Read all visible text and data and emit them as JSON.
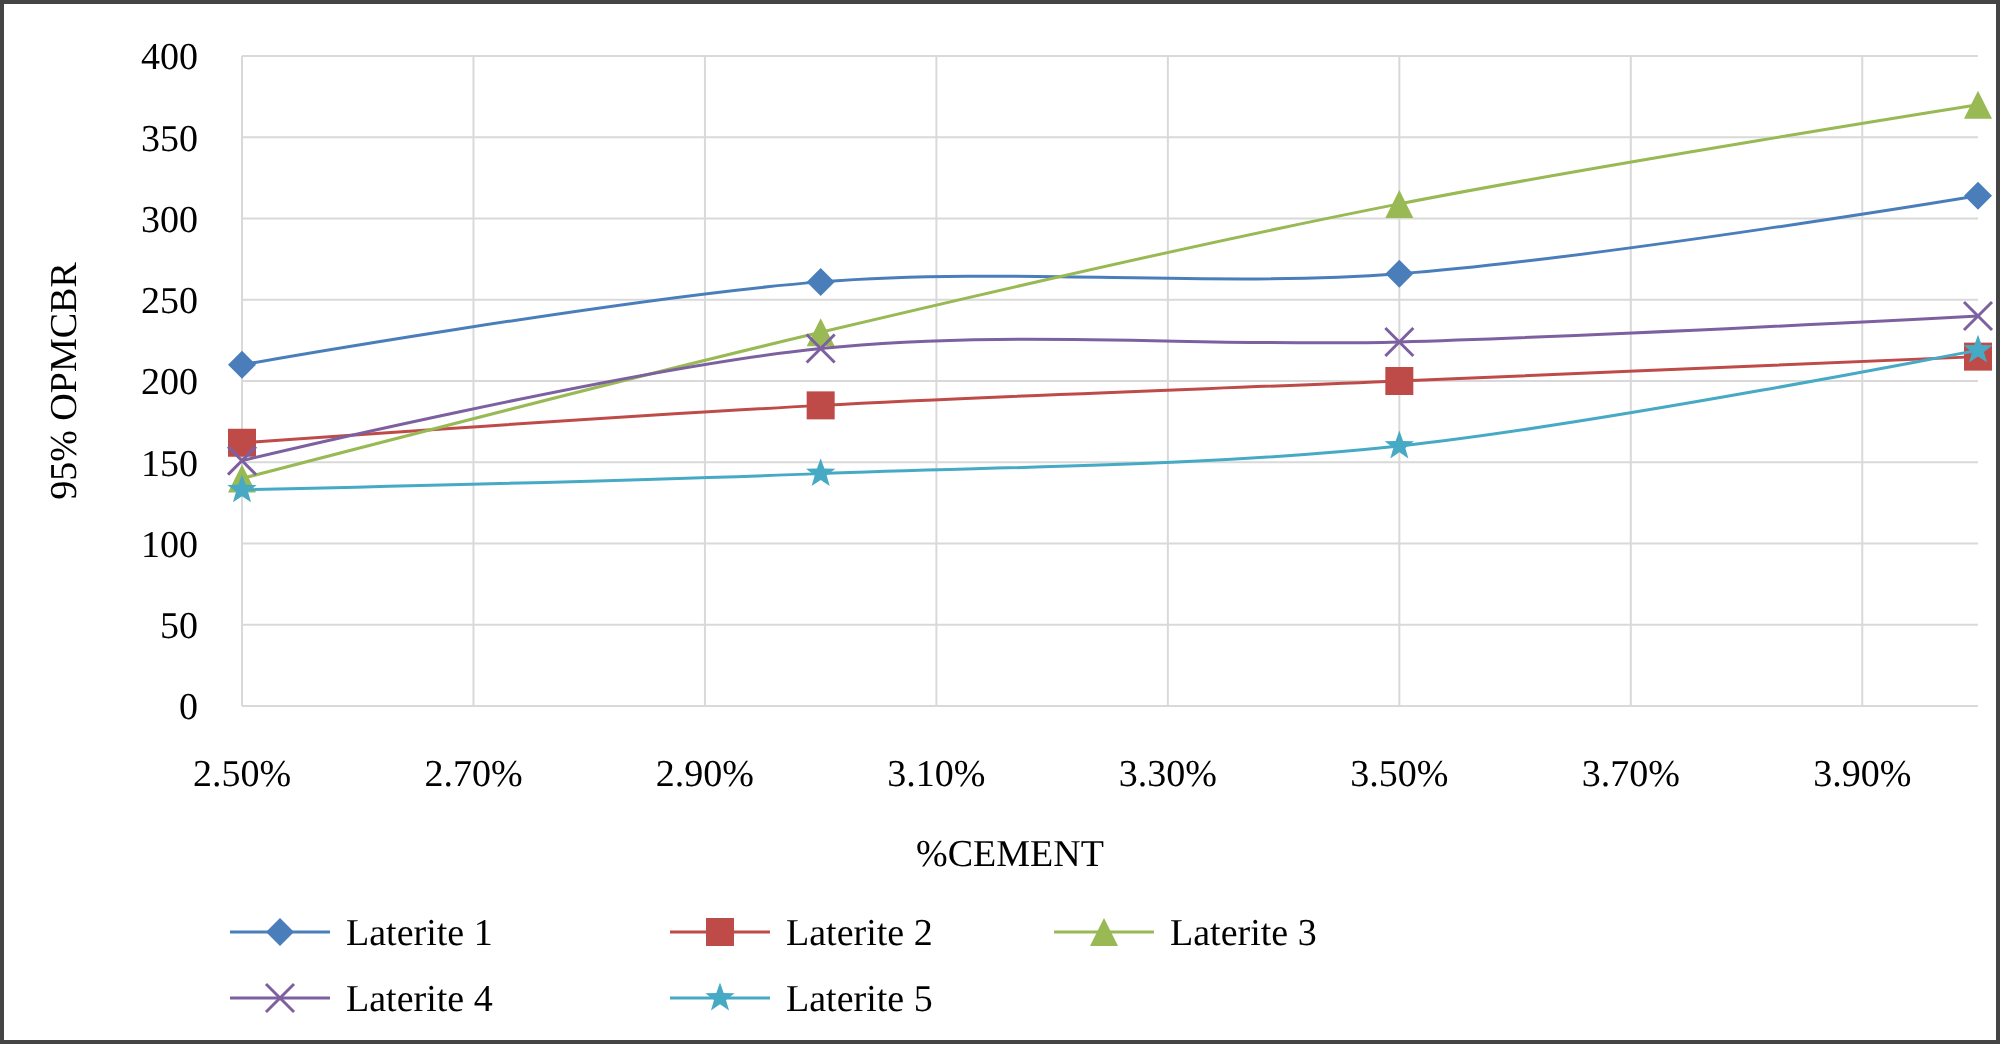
{
  "chart_data": {
    "type": "line",
    "xlabel": "%CEMENT",
    "ylabel": "95% OPMCBR",
    "x": [
      2.5,
      3.0,
      3.5,
      4.0
    ],
    "series": [
      {
        "name": "Laterite 1",
        "color": "#4a7ebb",
        "marker": "diamond",
        "values": [
          210,
          261,
          266,
          314
        ]
      },
      {
        "name": "Laterite 2",
        "color": "#be4b48",
        "marker": "square",
        "values": [
          162,
          185,
          200,
          215
        ]
      },
      {
        "name": "Laterite 3",
        "color": "#98b954",
        "marker": "triangle",
        "values": [
          140,
          230,
          309,
          370
        ]
      },
      {
        "name": "Laterite 4",
        "color": "#7d60a0",
        "marker": "cross",
        "values": [
          151,
          220,
          224,
          240
        ]
      },
      {
        "name": "Laterite 5",
        "color": "#46aac5",
        "marker": "star",
        "values": [
          133,
          143,
          160,
          219
        ]
      }
    ],
    "xlim": [
      2.5,
      4.0
    ],
    "xticks": [
      {
        "value": 2.5,
        "label": "2.50%"
      },
      {
        "value": 2.7,
        "label": "2.70%"
      },
      {
        "value": 2.9,
        "label": "2.90%"
      },
      {
        "value": 3.1,
        "label": "3.10%"
      },
      {
        "value": 3.3,
        "label": "3.30%"
      },
      {
        "value": 3.5,
        "label": "3.50%"
      },
      {
        "value": 3.7,
        "label": "3.70%"
      },
      {
        "value": 3.9,
        "label": "3.90%"
      }
    ],
    "ylim": [
      0,
      400
    ],
    "yticks": [
      0,
      50,
      100,
      150,
      200,
      250,
      300,
      350,
      400
    ],
    "grid": true,
    "legend": "bottom"
  }
}
